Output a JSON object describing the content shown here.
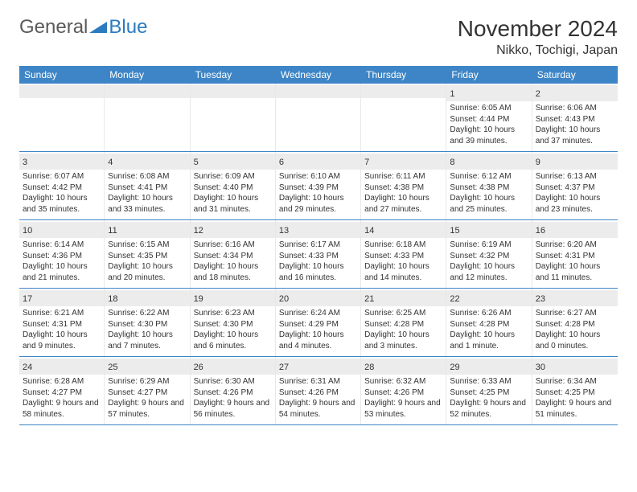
{
  "logo": {
    "textA": "General",
    "textB": "Blue",
    "triangleColor": "#2c7bc0"
  },
  "header": {
    "title": "November 2024",
    "location": "Nikko, Tochigi, Japan"
  },
  "colors": {
    "headerBar": "#3d85c6",
    "dayNumBg": "#ececec",
    "rowBorder": "#3d85c6",
    "text": "#333333"
  },
  "daysOfWeek": [
    "Sunday",
    "Monday",
    "Tuesday",
    "Wednesday",
    "Thursday",
    "Friday",
    "Saturday"
  ],
  "weeks": [
    [
      {
        "empty": true
      },
      {
        "empty": true
      },
      {
        "empty": true
      },
      {
        "empty": true
      },
      {
        "empty": true
      },
      {
        "num": "1",
        "sunrise": "Sunrise: 6:05 AM",
        "sunset": "Sunset: 4:44 PM",
        "daylight": "Daylight: 10 hours and 39 minutes."
      },
      {
        "num": "2",
        "sunrise": "Sunrise: 6:06 AM",
        "sunset": "Sunset: 4:43 PM",
        "daylight": "Daylight: 10 hours and 37 minutes."
      }
    ],
    [
      {
        "num": "3",
        "sunrise": "Sunrise: 6:07 AM",
        "sunset": "Sunset: 4:42 PM",
        "daylight": "Daylight: 10 hours and 35 minutes."
      },
      {
        "num": "4",
        "sunrise": "Sunrise: 6:08 AM",
        "sunset": "Sunset: 4:41 PM",
        "daylight": "Daylight: 10 hours and 33 minutes."
      },
      {
        "num": "5",
        "sunrise": "Sunrise: 6:09 AM",
        "sunset": "Sunset: 4:40 PM",
        "daylight": "Daylight: 10 hours and 31 minutes."
      },
      {
        "num": "6",
        "sunrise": "Sunrise: 6:10 AM",
        "sunset": "Sunset: 4:39 PM",
        "daylight": "Daylight: 10 hours and 29 minutes."
      },
      {
        "num": "7",
        "sunrise": "Sunrise: 6:11 AM",
        "sunset": "Sunset: 4:38 PM",
        "daylight": "Daylight: 10 hours and 27 minutes."
      },
      {
        "num": "8",
        "sunrise": "Sunrise: 6:12 AM",
        "sunset": "Sunset: 4:38 PM",
        "daylight": "Daylight: 10 hours and 25 minutes."
      },
      {
        "num": "9",
        "sunrise": "Sunrise: 6:13 AM",
        "sunset": "Sunset: 4:37 PM",
        "daylight": "Daylight: 10 hours and 23 minutes."
      }
    ],
    [
      {
        "num": "10",
        "sunrise": "Sunrise: 6:14 AM",
        "sunset": "Sunset: 4:36 PM",
        "daylight": "Daylight: 10 hours and 21 minutes."
      },
      {
        "num": "11",
        "sunrise": "Sunrise: 6:15 AM",
        "sunset": "Sunset: 4:35 PM",
        "daylight": "Daylight: 10 hours and 20 minutes."
      },
      {
        "num": "12",
        "sunrise": "Sunrise: 6:16 AM",
        "sunset": "Sunset: 4:34 PM",
        "daylight": "Daylight: 10 hours and 18 minutes."
      },
      {
        "num": "13",
        "sunrise": "Sunrise: 6:17 AM",
        "sunset": "Sunset: 4:33 PM",
        "daylight": "Daylight: 10 hours and 16 minutes."
      },
      {
        "num": "14",
        "sunrise": "Sunrise: 6:18 AM",
        "sunset": "Sunset: 4:33 PM",
        "daylight": "Daylight: 10 hours and 14 minutes."
      },
      {
        "num": "15",
        "sunrise": "Sunrise: 6:19 AM",
        "sunset": "Sunset: 4:32 PM",
        "daylight": "Daylight: 10 hours and 12 minutes."
      },
      {
        "num": "16",
        "sunrise": "Sunrise: 6:20 AM",
        "sunset": "Sunset: 4:31 PM",
        "daylight": "Daylight: 10 hours and 11 minutes."
      }
    ],
    [
      {
        "num": "17",
        "sunrise": "Sunrise: 6:21 AM",
        "sunset": "Sunset: 4:31 PM",
        "daylight": "Daylight: 10 hours and 9 minutes."
      },
      {
        "num": "18",
        "sunrise": "Sunrise: 6:22 AM",
        "sunset": "Sunset: 4:30 PM",
        "daylight": "Daylight: 10 hours and 7 minutes."
      },
      {
        "num": "19",
        "sunrise": "Sunrise: 6:23 AM",
        "sunset": "Sunset: 4:30 PM",
        "daylight": "Daylight: 10 hours and 6 minutes."
      },
      {
        "num": "20",
        "sunrise": "Sunrise: 6:24 AM",
        "sunset": "Sunset: 4:29 PM",
        "daylight": "Daylight: 10 hours and 4 minutes."
      },
      {
        "num": "21",
        "sunrise": "Sunrise: 6:25 AM",
        "sunset": "Sunset: 4:28 PM",
        "daylight": "Daylight: 10 hours and 3 minutes."
      },
      {
        "num": "22",
        "sunrise": "Sunrise: 6:26 AM",
        "sunset": "Sunset: 4:28 PM",
        "daylight": "Daylight: 10 hours and 1 minute."
      },
      {
        "num": "23",
        "sunrise": "Sunrise: 6:27 AM",
        "sunset": "Sunset: 4:28 PM",
        "daylight": "Daylight: 10 hours and 0 minutes."
      }
    ],
    [
      {
        "num": "24",
        "sunrise": "Sunrise: 6:28 AM",
        "sunset": "Sunset: 4:27 PM",
        "daylight": "Daylight: 9 hours and 58 minutes."
      },
      {
        "num": "25",
        "sunrise": "Sunrise: 6:29 AM",
        "sunset": "Sunset: 4:27 PM",
        "daylight": "Daylight: 9 hours and 57 minutes."
      },
      {
        "num": "26",
        "sunrise": "Sunrise: 6:30 AM",
        "sunset": "Sunset: 4:26 PM",
        "daylight": "Daylight: 9 hours and 56 minutes."
      },
      {
        "num": "27",
        "sunrise": "Sunrise: 6:31 AM",
        "sunset": "Sunset: 4:26 PM",
        "daylight": "Daylight: 9 hours and 54 minutes."
      },
      {
        "num": "28",
        "sunrise": "Sunrise: 6:32 AM",
        "sunset": "Sunset: 4:26 PM",
        "daylight": "Daylight: 9 hours and 53 minutes."
      },
      {
        "num": "29",
        "sunrise": "Sunrise: 6:33 AM",
        "sunset": "Sunset: 4:25 PM",
        "daylight": "Daylight: 9 hours and 52 minutes."
      },
      {
        "num": "30",
        "sunrise": "Sunrise: 6:34 AM",
        "sunset": "Sunset: 4:25 PM",
        "daylight": "Daylight: 9 hours and 51 minutes."
      }
    ]
  ]
}
